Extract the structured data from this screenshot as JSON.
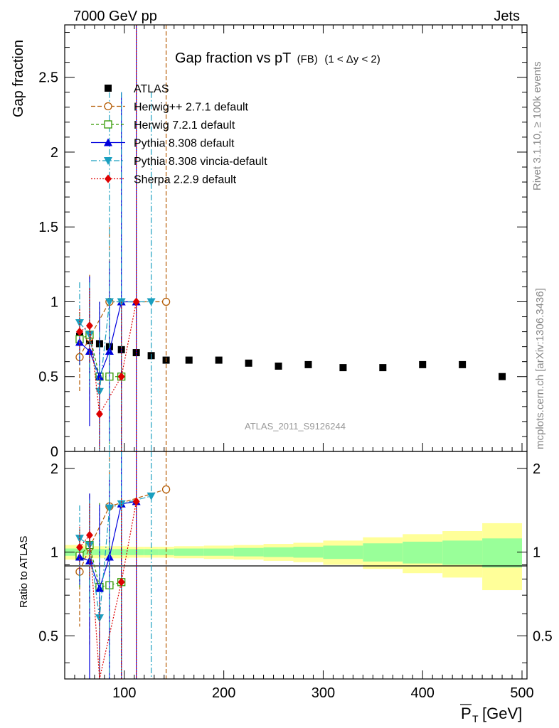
{
  "header": {
    "left": "7000 GeV pp",
    "right": "Jets",
    "title_main": "Gap fraction vs pT",
    "title_sub": "(FB)",
    "title_range": "(1 < Δy < 2)",
    "side_top": "Rivet 3.1.10, ≥ 100k events",
    "side_bottom": "mcplots.cern.ch [arXiv:1306.3436]",
    "watermark": "ATLAS_2011_S9126244"
  },
  "colors": {
    "ATLAS": "#000000",
    "Herwig++": "#b35900",
    "Herwig7": "#339900",
    "Pythia": "#0000dd",
    "Vincia": "#1a9fbf",
    "Sherpa": "#dd0000",
    "band_inner": "#99ff99",
    "band_outer": "#ffff99"
  },
  "chart_data": {
    "type": "scatter",
    "title": "Gap fraction vs pT (FB) (1 < Δy < 2)",
    "xlabel": "P_T [GeV]",
    "ylabel": "Gap fraction",
    "ratio_ylabel": "Ratio to ATLAS",
    "xlim": [
      40,
      505
    ],
    "ylim": [
      0,
      2.85
    ],
    "ratio_ylim": [
      0.35,
      2.3
    ],
    "x_ticks": [
      "100",
      "200",
      "300",
      "400",
      "500"
    ],
    "y_ticks": [
      "0",
      "0.5",
      "1",
      "1.5",
      "2",
      "2.5"
    ],
    "ratio_ticks": [
      "0.5",
      "1",
      "2"
    ],
    "legend_position": "top-left",
    "series": [
      {
        "name": "ATLAS",
        "marker": "square",
        "x": [
          55,
          65,
          75,
          85,
          97,
          112,
          127,
          142,
          165,
          195,
          225,
          255,
          285,
          320,
          360,
          400,
          440,
          480
        ],
        "y": [
          0.77,
          0.74,
          0.72,
          0.7,
          0.68,
          0.66,
          0.64,
          0.61,
          0.61,
          0.61,
          0.59,
          0.57,
          0.58,
          0.56,
          0.56,
          0.58,
          0.58,
          0.5
        ]
      },
      {
        "name": "Herwig++ 2.7.1 default",
        "marker": "circle-open",
        "dash": "6,3",
        "x": [
          55,
          65,
          85,
          142
        ],
        "y": [
          0.63,
          0.76,
          1.0,
          1.0
        ],
        "err": [
          0.23,
          0.42,
          0.5,
          2.0
        ],
        "ratio": [
          0.85,
          1.04,
          1.46,
          1.68
        ]
      },
      {
        "name": "Herwig 7.2.1 default",
        "marker": "square-open",
        "dash": "4,3",
        "x": [
          55,
          65,
          75,
          85,
          97
        ],
        "y": [
          0.75,
          0.78,
          0.5,
          0.5,
          0.5
        ],
        "err": [
          0.18,
          0.3,
          0.5,
          0.5,
          0.5
        ],
        "ratio": [
          0.97,
          1.06,
          0.75,
          0.76,
          0.78
        ]
      },
      {
        "name": "Pythia 8.308 default",
        "marker": "triangle-up",
        "dash": "",
        "x": [
          55,
          65,
          75,
          85,
          97,
          112
        ],
        "y": [
          0.73,
          0.67,
          0.5,
          0.67,
          1.0,
          1.0
        ],
        "err": [
          0.15,
          0.5,
          0.5,
          0.6,
          1.4,
          2.0
        ],
        "ratio": [
          0.96,
          0.93,
          0.74,
          0.96,
          1.49,
          1.52
        ]
      },
      {
        "name": "Pythia 8.308 vincia-default",
        "marker": "triangle-down",
        "dash": "8,3,2,3",
        "x": [
          55,
          65,
          75,
          85,
          97,
          127
        ],
        "y": [
          0.86,
          0.78,
          0.4,
          1.0,
          1.0,
          1.0
        ],
        "err": [
          0.27,
          0.35,
          0.4,
          1.4,
          1.4,
          1.4
        ],
        "ratio": [
          1.12,
          1.06,
          0.58,
          1.44,
          1.49,
          1.59
        ]
      },
      {
        "name": "Sherpa 2.2.9 default",
        "marker": "diamond",
        "dash": "2,2",
        "x": [
          55,
          65,
          75,
          97,
          112
        ],
        "y": [
          0.8,
          0.84,
          0.25,
          0.5,
          1.0
        ],
        "err": [
          0.15,
          0.25,
          0.25,
          0.5,
          2.0
        ],
        "ratio": [
          1.04,
          1.15,
          0.33,
          0.78,
          1.52
        ]
      }
    ],
    "band": {
      "x_edges": [
        40,
        60,
        70,
        80,
        90,
        105,
        120,
        135,
        150,
        180,
        210,
        240,
        270,
        300,
        340,
        380,
        420,
        460,
        500
      ],
      "inner": [
        0.03,
        0.025,
        0.025,
        0.025,
        0.025,
        0.025,
        0.025,
        0.025,
        0.03,
        0.03,
        0.035,
        0.04,
        0.045,
        0.055,
        0.075,
        0.09,
        0.1,
        0.12
      ],
      "outer": [
        0.06,
        0.05,
        0.05,
        0.05,
        0.05,
        0.045,
        0.045,
        0.045,
        0.05,
        0.055,
        0.06,
        0.07,
        0.08,
        0.1,
        0.13,
        0.16,
        0.19,
        0.27
      ]
    }
  }
}
